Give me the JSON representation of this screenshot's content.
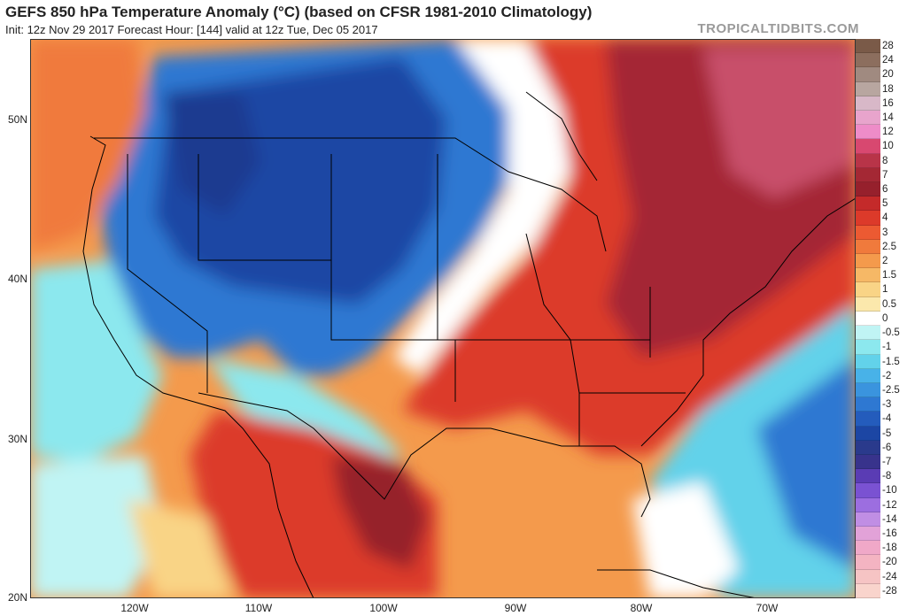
{
  "header": {
    "title": "GEFS 850 hPa Temperature Anomaly (°C) (based on CFSR 1981-2010 Climatology)",
    "subtitle": "Init: 12z Nov 29 2017   Forecast Hour: [144]   valid at 12z Tue, Dec 05 2017",
    "brand": "TROPICALTIDBITS.COM"
  },
  "axes": {
    "lat_labels": [
      "50N",
      "40N",
      "30N",
      "20N"
    ],
    "lon_labels": [
      "120W",
      "110W",
      "100W",
      "90W",
      "80W",
      "70W"
    ]
  },
  "legend": [
    {
      "value": "28",
      "color": "#7a5a48"
    },
    {
      "value": "24",
      "color": "#8c6e5e"
    },
    {
      "value": "20",
      "color": "#a08a80"
    },
    {
      "value": "18",
      "color": "#b8a6a0"
    },
    {
      "value": "16",
      "color": "#d8b8c8"
    },
    {
      "value": "14",
      "color": "#e8a4cc"
    },
    {
      "value": "12",
      "color": "#ee8cc8"
    },
    {
      "value": "10",
      "color": "#d84870"
    },
    {
      "value": "8",
      "color": "#b83448"
    },
    {
      "value": "7",
      "color": "#a42834"
    },
    {
      "value": "6",
      "color": "#96202c"
    },
    {
      "value": "5",
      "color": "#c42a2a"
    },
    {
      "value": "4",
      "color": "#dc3a2a"
    },
    {
      "value": "3",
      "color": "#ec5a32"
    },
    {
      "value": "2.5",
      "color": "#f07a3c"
    },
    {
      "value": "2",
      "color": "#f49a4c"
    },
    {
      "value": "1.5",
      "color": "#f6b866"
    },
    {
      "value": "1",
      "color": "#f9d486"
    },
    {
      "value": "0.5",
      "color": "#fbe8ac"
    },
    {
      "value": "0",
      "color": "#ffffff"
    },
    {
      "value": "-0.5",
      "color": "#c0f4f4"
    },
    {
      "value": "-1",
      "color": "#8ce8ee"
    },
    {
      "value": "-1.5",
      "color": "#62d2ea"
    },
    {
      "value": "-2",
      "color": "#48b2e8"
    },
    {
      "value": "-2.5",
      "color": "#3a94de"
    },
    {
      "value": "-3",
      "color": "#2e78d2"
    },
    {
      "value": "-4",
      "color": "#245cbc"
    },
    {
      "value": "-5",
      "color": "#1c46a4"
    },
    {
      "value": "-6",
      "color": "#2a3a8c"
    },
    {
      "value": "-7",
      "color": "#38338c"
    },
    {
      "value": "-8",
      "color": "#5a3cb4"
    },
    {
      "value": "-10",
      "color": "#7a52d2"
    },
    {
      "value": "-12",
      "color": "#9c6ee0"
    },
    {
      "value": "-14",
      "color": "#c08ee4"
    },
    {
      "value": "-16",
      "color": "#e2a2d8"
    },
    {
      "value": "-18",
      "color": "#f0a8c8"
    },
    {
      "value": "-20",
      "color": "#f4b4c2"
    },
    {
      "value": "-24",
      "color": "#f6c4c4"
    },
    {
      "value": "-28",
      "color": "#f9d4cc"
    }
  ],
  "colors": {
    "land_outline": "#000000",
    "frame": "#333333"
  }
}
